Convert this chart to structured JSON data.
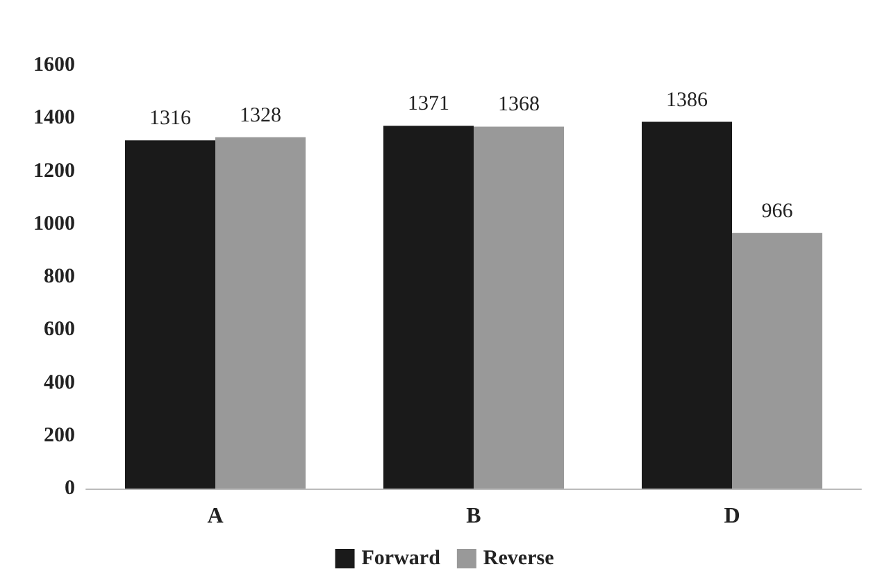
{
  "chart_data": {
    "type": "bar",
    "categories": [
      "A",
      "B",
      "D"
    ],
    "series": [
      {
        "name": "Forward",
        "color": "#1a1a1a",
        "values": [
          1316,
          1371,
          1386
        ]
      },
      {
        "name": "Reverse",
        "color": "#999999",
        "values": [
          1328,
          1368,
          966
        ]
      }
    ],
    "ylim": [
      0,
      1600
    ],
    "yticks": [
      0,
      200,
      400,
      600,
      800,
      1000,
      1200,
      1400,
      1600
    ],
    "grid": false,
    "legend": "bottom",
    "data_labels": true
  }
}
